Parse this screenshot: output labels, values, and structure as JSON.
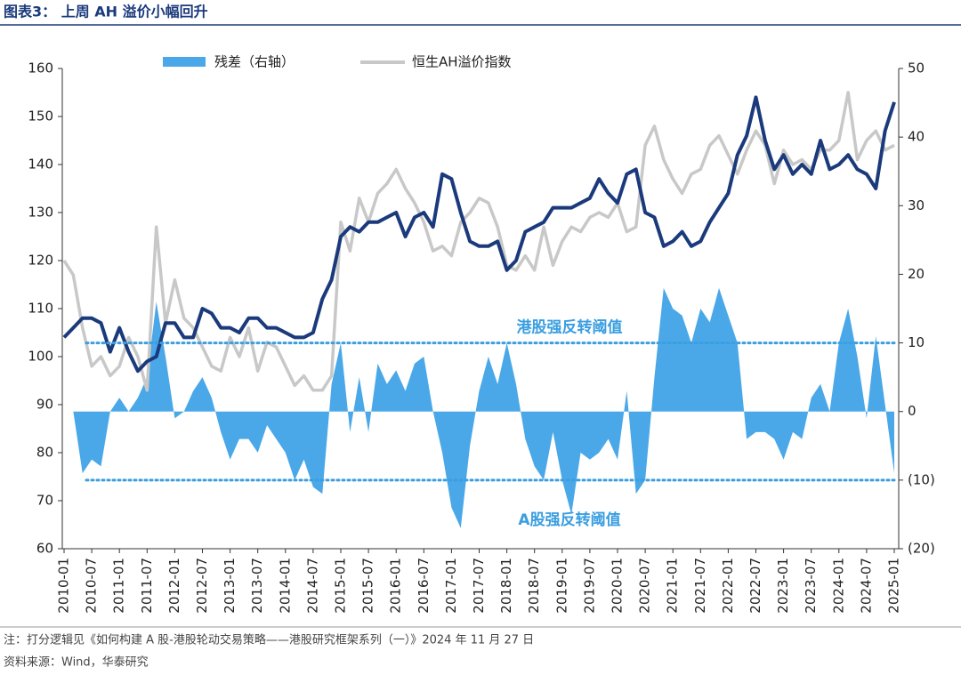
{
  "chart_data": {
    "type": "combo",
    "title": "图表3：  上周 AH 溢价小幅回升",
    "note": "注：打分逻辑见《如何构建 A 股-港股轮动交易策略——港股研究框架系列（一）》2024 年 11 月 27 日",
    "source": "资料来源：Wind，华泰研究",
    "x": [
      "2010-01",
      "2010-03",
      "2010-05",
      "2010-07",
      "2010-09",
      "2010-11",
      "2011-01",
      "2011-03",
      "2011-05",
      "2011-07",
      "2011-09",
      "2011-11",
      "2012-01",
      "2012-03",
      "2012-05",
      "2012-07",
      "2012-09",
      "2012-11",
      "2013-01",
      "2013-03",
      "2013-05",
      "2013-07",
      "2013-09",
      "2013-11",
      "2014-01",
      "2014-03",
      "2014-05",
      "2014-07",
      "2014-09",
      "2014-11",
      "2015-01",
      "2015-03",
      "2015-05",
      "2015-07",
      "2015-09",
      "2015-11",
      "2016-01",
      "2016-03",
      "2016-05",
      "2016-07",
      "2016-09",
      "2016-11",
      "2017-01",
      "2017-03",
      "2017-05",
      "2017-07",
      "2017-09",
      "2017-11",
      "2018-01",
      "2018-03",
      "2018-05",
      "2018-07",
      "2018-09",
      "2018-11",
      "2019-01",
      "2019-03",
      "2019-05",
      "2019-07",
      "2019-09",
      "2019-11",
      "2020-01",
      "2020-03",
      "2020-05",
      "2020-07",
      "2020-09",
      "2020-11",
      "2021-01",
      "2021-03",
      "2021-05",
      "2021-07",
      "2021-09",
      "2021-11",
      "2022-01",
      "2022-03",
      "2022-05",
      "2022-07",
      "2022-09",
      "2022-11",
      "2023-01",
      "2023-03",
      "2023-05",
      "2023-07",
      "2023-09",
      "2023-11",
      "2024-01",
      "2024-03",
      "2024-05",
      "2024-07",
      "2024-09",
      "2024-11",
      "2025-01"
    ],
    "series": [
      {
        "name": "残差（右轴）",
        "color": "#4aa8e8",
        "kind": "area",
        "axis": "y2",
        "values": [
          0,
          0,
          -9,
          -7,
          -8,
          0,
          2,
          0,
          2,
          5,
          16,
          8,
          -1,
          0,
          3,
          5,
          2,
          -3,
          -7,
          -4,
          -4,
          -6,
          -2,
          -4,
          -6,
          -10,
          -7,
          -11,
          -12,
          4,
          10,
          -3,
          5,
          -3,
          7,
          4,
          6,
          3,
          7,
          8,
          0,
          -6,
          -14,
          -17,
          -5,
          3,
          8,
          4,
          10,
          4,
          -4,
          -8,
          -10,
          -3,
          -10,
          -15,
          -6,
          -7,
          -6,
          -4,
          -7,
          3,
          -12,
          -10,
          5,
          18,
          15,
          14,
          10,
          15,
          13,
          18,
          14,
          10,
          -4,
          -3,
          -3,
          -4,
          -7,
          -3,
          -4,
          2,
          4,
          0,
          10,
          15,
          8,
          -1,
          11,
          1,
          -9
        ]
      },
      {
        "name": "恒生AH溢价指数",
        "color": "#c8c8c8",
        "kind": "line",
        "values": [
          120,
          117,
          106,
          98,
          100,
          96,
          98,
          104,
          100,
          93,
          127,
          107,
          116,
          108,
          106,
          102,
          98,
          97,
          104,
          100,
          106,
          97,
          103,
          102,
          98,
          94,
          96,
          93,
          93,
          96,
          128,
          122,
          133,
          128,
          134,
          136,
          139,
          135,
          132,
          128,
          122,
          123,
          121,
          128,
          130,
          133,
          132,
          127,
          119,
          118,
          121,
          118,
          127,
          119,
          124,
          127,
          126,
          129,
          130,
          129,
          132,
          126,
          127,
          144,
          148,
          141,
          137,
          134,
          138,
          139,
          144,
          146,
          142,
          138,
          143,
          147,
          144,
          136,
          143,
          140,
          141,
          139,
          143,
          143,
          145,
          155,
          141,
          145,
          147,
          143,
          144
        ]
      },
      {
        "color": "#1b3a7c",
        "kind": "line",
        "values": [
          104,
          106,
          108,
          108,
          107,
          101,
          106,
          101,
          97,
          99,
          100,
          107,
          107,
          104,
          104,
          110,
          109,
          106,
          106,
          105,
          108,
          108,
          106,
          106,
          105,
          104,
          104,
          105,
          112,
          116,
          125,
          127,
          126,
          128,
          128,
          129,
          130,
          125,
          129,
          130,
          127,
          138,
          137,
          130,
          124,
          123,
          123,
          124,
          118,
          120,
          126,
          127,
          128,
          131,
          131,
          131,
          132,
          133,
          137,
          134,
          132,
          138,
          139,
          130,
          129,
          123,
          124,
          126,
          123,
          124,
          128,
          131,
          134,
          142,
          146,
          154,
          145,
          139,
          142,
          138,
          140,
          138,
          145,
          139,
          140,
          142,
          139,
          138,
          135,
          147,
          153
        ]
      }
    ],
    "thresholds": [
      {
        "label": "港股强反转阈值",
        "value": 10,
        "color": "#3a9ee0"
      },
      {
        "label": "A股强反转阈值",
        "value": -10,
        "color": "#3a9ee0"
      }
    ],
    "xlim": [
      "2010-01",
      "2025-01"
    ],
    "xticks": [
      "2010-01",
      "2010-07",
      "2011-01",
      "2011-07",
      "2012-01",
      "2012-07",
      "2013-01",
      "2013-07",
      "2014-01",
      "2014-07",
      "2015-01",
      "2015-07",
      "2016-01",
      "2016-07",
      "2017-01",
      "2017-07",
      "2018-01",
      "2018-07",
      "2019-01",
      "2019-07",
      "2020-01",
      "2020-07",
      "2021-01",
      "2021-07",
      "2022-01",
      "2022-07",
      "2023-01",
      "2023-07",
      "2024-01",
      "2024-07",
      "2025-01"
    ],
    "ylim": [
      60,
      160
    ],
    "yticks": [
      60,
      70,
      80,
      90,
      100,
      110,
      120,
      130,
      140,
      150,
      160
    ],
    "y2lim": [
      -20,
      50
    ],
    "y2ticks": [
      {
        "value": -20,
        "label": "(20)"
      },
      {
        "value": -10,
        "label": "(10)"
      },
      0,
      10,
      20,
      30,
      40,
      50
    ]
  }
}
